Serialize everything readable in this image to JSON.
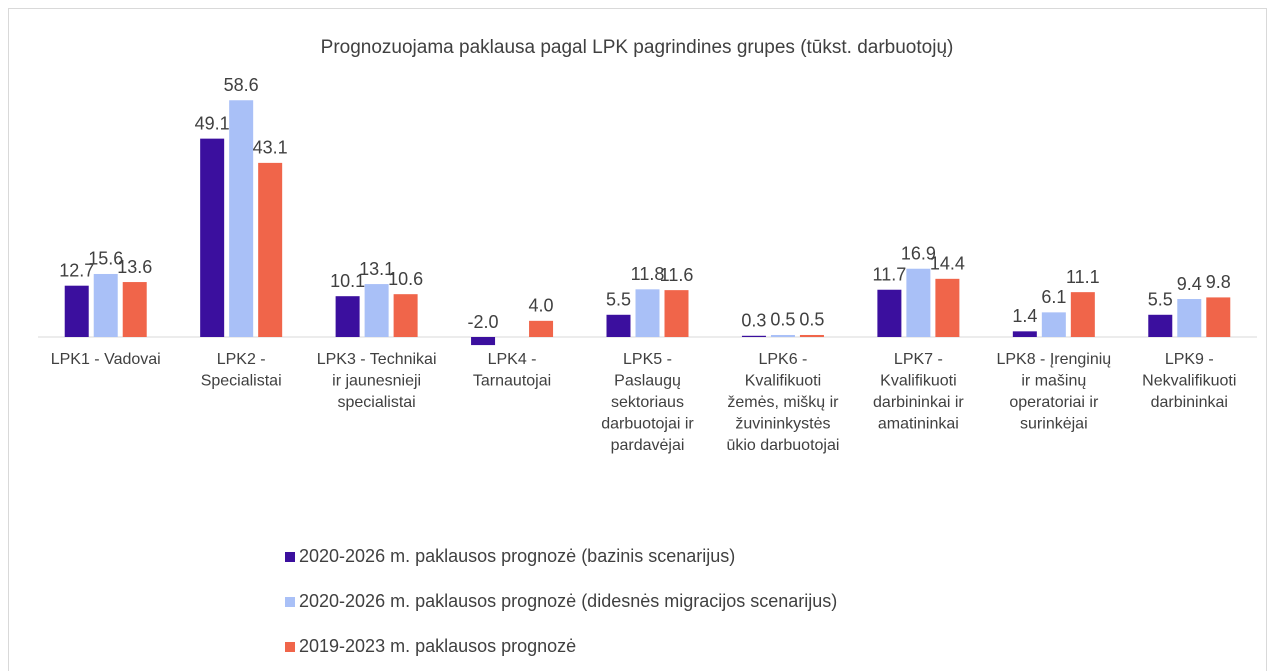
{
  "chart_data": {
    "type": "bar",
    "title": "Prognozuojama paklausa pagal LPK pagrindines grupes (tūkst. darbuotojų)",
    "categories": [
      "LPK1 - Vadovai",
      "LPK2 - Specialistai",
      "LPK3 - Technikai ir jaunesnieji specialistai",
      "LPK4 - Tarnautojai",
      "LPK5 - Paslaugų sektoriaus darbuotojai ir pardavėjai",
      "LPK6 - Kvalifikuoti žemės, miškų ir žuvininkystės ūkio darbuotojai",
      "LPK7 - Kvalifikuoti darbininkai ir amatininkai",
      "LPK8 - Įrenginių ir mašinų operatoriai ir surinkėjai",
      "LPK9 - Nekvalifikuoti darbininkai"
    ],
    "series": [
      {
        "name": "2020-2026 m. paklausos prognozė (bazinis scenarijus)",
        "color": "#3b0f9e",
        "values": [
          12.7,
          49.1,
          10.1,
          -2.0,
          5.5,
          0.3,
          11.7,
          1.4,
          5.5
        ],
        "value_labels": [
          "12.7",
          "49.1",
          "10.1",
          "-2.0",
          "5.5",
          "0.3",
          "11.7",
          "1.4",
          "5.5"
        ]
      },
      {
        "name": "2020-2026 m. paklausos prognozė (didesnės migracijos scenarijus)",
        "color": "#a9c0f7",
        "values": [
          15.6,
          58.6,
          13.1,
          null,
          11.8,
          0.5,
          16.9,
          6.1,
          9.4
        ],
        "value_labels": [
          "15.6",
          "58.6",
          "13.1",
          null,
          "11.8",
          "0.5",
          "16.9",
          "6.1",
          "9.4"
        ]
      },
      {
        "name": "2019-2023 m. paklausos prognozė",
        "color": "#f0654a",
        "values": [
          13.6,
          43.1,
          10.6,
          4.0,
          11.6,
          0.5,
          14.4,
          11.1,
          9.8
        ],
        "value_labels": [
          "13.6",
          "43.1",
          "10.6",
          "4.0",
          "11.6",
          "0.5",
          "14.4",
          "11.1",
          "9.8"
        ]
      }
    ],
    "ylim": [
      -5,
      60
    ]
  }
}
